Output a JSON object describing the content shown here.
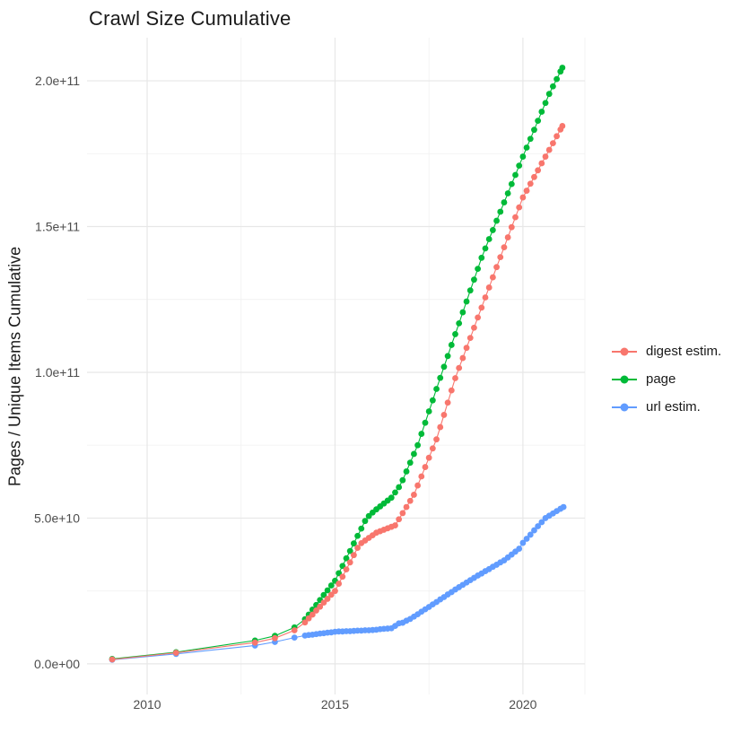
{
  "title": "Crawl Size Cumulative",
  "colors": {
    "background": "#FFFFFF",
    "grid_major": "#E7E7E7",
    "grid_minor": "#F2F2F2",
    "tick_label": "#4D4D4D",
    "text": "#1A1A1A",
    "digest_estim": "#F8766D",
    "page": "#00BA38",
    "url_estim": "#619CFF"
  },
  "legend": {
    "items": [
      {
        "label": "digest estim.",
        "color": "#F8766D"
      },
      {
        "label": "page",
        "color": "#00BA38"
      },
      {
        "label": "url estim.",
        "color": "#619CFF"
      }
    ]
  },
  "chart_data": {
    "type": "scatter",
    "title": "Crawl Size Cumulative",
    "xlabel": "",
    "ylabel": "Pages / Unique Items Cumulative",
    "grid": true,
    "legend_position": "right",
    "xlim": [
      2008.4,
      2021.65
    ],
    "ylim_e9": [
      -10.5,
      214.8
    ],
    "x_ticks": [
      {
        "value": 2010,
        "label": "2010"
      },
      {
        "value": 2015,
        "label": "2015"
      },
      {
        "value": 2020,
        "label": "2020"
      }
    ],
    "x_minor_ticks": [
      2012.5,
      2017.5
    ],
    "y_ticks": [
      {
        "value": 0,
        "label": "0.0e+00"
      },
      {
        "value": 50000000000,
        "label": "5.0e+10"
      },
      {
        "value": 100000000000,
        "label": "1.0e+11"
      },
      {
        "value": 150000000000,
        "label": "1.5e+11"
      },
      {
        "value": 200000000000,
        "label": "2.0e+11"
      }
    ],
    "y_minor_ticks": [
      25000000000,
      75000000000,
      125000000000,
      175000000000
    ],
    "unit_note": "series point values are in billions (1e9) of pages / unique items; x is decimal year",
    "series": [
      {
        "name": "digest estim.",
        "color": "#F8766D",
        "z": 3,
        "points": [
          [
            2009.07,
            1.5
          ],
          [
            2010.77,
            3.8
          ],
          [
            2012.87,
            7.3
          ],
          [
            2013.4,
            8.8
          ],
          [
            2013.92,
            11.5
          ],
          [
            2014.2,
            14.2
          ],
          [
            2014.3,
            15.6
          ],
          [
            2014.4,
            16.9
          ],
          [
            2014.5,
            18.3
          ],
          [
            2014.6,
            19.6
          ],
          [
            2014.7,
            21.0
          ],
          [
            2014.8,
            22.3
          ],
          [
            2014.9,
            23.7
          ],
          [
            2015.0,
            25.0
          ],
          [
            2015.1,
            27.5
          ],
          [
            2015.2,
            29.9
          ],
          [
            2015.3,
            32.4
          ],
          [
            2015.4,
            34.8
          ],
          [
            2015.5,
            37.3
          ],
          [
            2015.6,
            39.8
          ],
          [
            2015.7,
            41.4
          ],
          [
            2015.8,
            42.3
          ],
          [
            2015.9,
            43.2
          ],
          [
            2016.0,
            44.1
          ],
          [
            2016.1,
            45.0
          ],
          [
            2016.2,
            45.5
          ],
          [
            2016.3,
            46.0
          ],
          [
            2016.4,
            46.5
          ],
          [
            2016.5,
            47.0
          ],
          [
            2016.6,
            47.5
          ],
          [
            2016.7,
            49.6
          ],
          [
            2016.8,
            51.7
          ],
          [
            2016.9,
            53.8
          ],
          [
            2017.0,
            55.9
          ],
          [
            2017.1,
            58.0
          ],
          [
            2017.2,
            61.2
          ],
          [
            2017.3,
            64.3
          ],
          [
            2017.4,
            67.5
          ],
          [
            2017.5,
            70.7
          ],
          [
            2017.6,
            73.9
          ],
          [
            2017.7,
            77.0
          ],
          [
            2017.8,
            81.2
          ],
          [
            2017.9,
            85.4
          ],
          [
            2018.0,
            89.6
          ],
          [
            2018.1,
            93.8
          ],
          [
            2018.2,
            98.0
          ],
          [
            2018.3,
            101.5
          ],
          [
            2018.4,
            104.9
          ],
          [
            2018.5,
            108.4
          ],
          [
            2018.6,
            111.8
          ],
          [
            2018.7,
            115.3
          ],
          [
            2018.8,
            118.8
          ],
          [
            2018.9,
            122.2
          ],
          [
            2019.0,
            125.7
          ],
          [
            2019.1,
            129.1
          ],
          [
            2019.2,
            132.6
          ],
          [
            2019.3,
            136.1
          ],
          [
            2019.4,
            139.5
          ],
          [
            2019.5,
            142.9
          ],
          [
            2019.6,
            146.3
          ],
          [
            2019.7,
            149.8
          ],
          [
            2019.8,
            153.2
          ],
          [
            2019.9,
            156.6
          ],
          [
            2020.0,
            160.0
          ],
          [
            2020.1,
            162.3
          ],
          [
            2020.2,
            164.7
          ],
          [
            2020.3,
            167.0
          ],
          [
            2020.4,
            169.3
          ],
          [
            2020.5,
            171.7
          ],
          [
            2020.6,
            174.0
          ],
          [
            2020.7,
            176.3
          ],
          [
            2020.8,
            178.6
          ],
          [
            2020.9,
            181.0
          ],
          [
            2021.0,
            183.3
          ],
          [
            2021.05,
            184.5
          ]
        ]
      },
      {
        "name": "page",
        "color": "#00BA38",
        "z": 2,
        "points": [
          [
            2009.07,
            1.7
          ],
          [
            2010.77,
            4.0
          ],
          [
            2012.87,
            8.0
          ],
          [
            2013.4,
            9.6
          ],
          [
            2013.92,
            12.5
          ],
          [
            2014.2,
            15.3
          ],
          [
            2014.3,
            16.9
          ],
          [
            2014.4,
            18.6
          ],
          [
            2014.5,
            20.2
          ],
          [
            2014.6,
            21.9
          ],
          [
            2014.7,
            23.6
          ],
          [
            2014.8,
            25.2
          ],
          [
            2014.9,
            26.9
          ],
          [
            2015.0,
            28.5
          ],
          [
            2015.1,
            31.1
          ],
          [
            2015.2,
            33.6
          ],
          [
            2015.3,
            36.2
          ],
          [
            2015.4,
            38.7
          ],
          [
            2015.5,
            41.3
          ],
          [
            2015.6,
            43.9
          ],
          [
            2015.7,
            46.4
          ],
          [
            2015.8,
            49.0
          ],
          [
            2015.9,
            50.7
          ],
          [
            2016.0,
            51.9
          ],
          [
            2016.1,
            53.0
          ],
          [
            2016.2,
            54.0
          ],
          [
            2016.3,
            55.0
          ],
          [
            2016.4,
            56.0
          ],
          [
            2016.5,
            57.0
          ],
          [
            2016.6,
            58.8
          ],
          [
            2016.7,
            60.6
          ],
          [
            2016.8,
            63.0
          ],
          [
            2016.9,
            66.0
          ],
          [
            2017.0,
            69.0
          ],
          [
            2017.1,
            72.0
          ],
          [
            2017.2,
            75.0
          ],
          [
            2017.3,
            78.9
          ],
          [
            2017.4,
            82.7
          ],
          [
            2017.5,
            86.6
          ],
          [
            2017.6,
            90.4
          ],
          [
            2017.7,
            94.3
          ],
          [
            2017.8,
            98.1
          ],
          [
            2017.9,
            101.9
          ],
          [
            2018.0,
            105.6
          ],
          [
            2018.1,
            109.4
          ],
          [
            2018.2,
            113.1
          ],
          [
            2018.3,
            116.8
          ],
          [
            2018.4,
            120.6
          ],
          [
            2018.5,
            124.3
          ],
          [
            2018.6,
            128.1
          ],
          [
            2018.7,
            131.8
          ],
          [
            2018.8,
            135.5
          ],
          [
            2018.9,
            139.3
          ],
          [
            2019.0,
            142.5
          ],
          [
            2019.1,
            145.7
          ],
          [
            2019.2,
            148.8
          ],
          [
            2019.3,
            152.0
          ],
          [
            2019.4,
            155.1
          ],
          [
            2019.5,
            158.3
          ],
          [
            2019.6,
            161.4
          ],
          [
            2019.7,
            164.6
          ],
          [
            2019.8,
            167.7
          ],
          [
            2019.9,
            170.9
          ],
          [
            2020.0,
            174.0
          ],
          [
            2020.1,
            177.1
          ],
          [
            2020.2,
            180.1
          ],
          [
            2020.3,
            183.2
          ],
          [
            2020.4,
            186.3
          ],
          [
            2020.5,
            189.4
          ],
          [
            2020.6,
            192.4
          ],
          [
            2020.7,
            195.5
          ],
          [
            2020.8,
            198.1
          ],
          [
            2020.9,
            200.6
          ],
          [
            2021.0,
            203.2
          ],
          [
            2021.05,
            204.5
          ]
        ]
      },
      {
        "name": "url estim.",
        "color": "#619CFF",
        "z": 1,
        "points": [
          [
            2009.07,
            1.4
          ],
          [
            2010.77,
            3.4
          ],
          [
            2012.87,
            6.3
          ],
          [
            2013.4,
            7.5
          ],
          [
            2013.92,
            9.0
          ],
          [
            2014.2,
            9.7
          ],
          [
            2014.3,
            9.9
          ],
          [
            2014.4,
            10.0
          ],
          [
            2014.5,
            10.2
          ],
          [
            2014.6,
            10.4
          ],
          [
            2014.7,
            10.5
          ],
          [
            2014.8,
            10.7
          ],
          [
            2014.9,
            10.8
          ],
          [
            2015.0,
            11.0
          ],
          [
            2015.1,
            11.1
          ],
          [
            2015.2,
            11.1
          ],
          [
            2015.3,
            11.2
          ],
          [
            2015.4,
            11.2
          ],
          [
            2015.5,
            11.3
          ],
          [
            2015.6,
            11.4
          ],
          [
            2015.7,
            11.4
          ],
          [
            2015.8,
            11.5
          ],
          [
            2015.9,
            11.5
          ],
          [
            2016.0,
            11.6
          ],
          [
            2016.1,
            11.7
          ],
          [
            2016.2,
            11.9
          ],
          [
            2016.3,
            12.0
          ],
          [
            2016.4,
            12.1
          ],
          [
            2016.5,
            12.2
          ],
          [
            2016.6,
            13.0
          ],
          [
            2016.7,
            13.9
          ],
          [
            2016.8,
            14.1
          ],
          [
            2016.9,
            14.8
          ],
          [
            2017.0,
            15.4
          ],
          [
            2017.1,
            16.2
          ],
          [
            2017.2,
            17.0
          ],
          [
            2017.3,
            17.9
          ],
          [
            2017.4,
            18.7
          ],
          [
            2017.5,
            19.5
          ],
          [
            2017.6,
            20.4
          ],
          [
            2017.7,
            21.2
          ],
          [
            2017.8,
            22.1
          ],
          [
            2017.9,
            22.9
          ],
          [
            2018.0,
            23.8
          ],
          [
            2018.1,
            24.6
          ],
          [
            2018.2,
            25.5
          ],
          [
            2018.3,
            26.3
          ],
          [
            2018.4,
            27.1
          ],
          [
            2018.5,
            27.9
          ],
          [
            2018.6,
            28.7
          ],
          [
            2018.7,
            29.5
          ],
          [
            2018.8,
            30.3
          ],
          [
            2018.9,
            31.0
          ],
          [
            2019.0,
            31.8
          ],
          [
            2019.1,
            32.5
          ],
          [
            2019.2,
            33.3
          ],
          [
            2019.3,
            34.0
          ],
          [
            2019.4,
            34.8
          ],
          [
            2019.5,
            35.5
          ],
          [
            2019.6,
            36.5
          ],
          [
            2019.7,
            37.5
          ],
          [
            2019.8,
            38.5
          ],
          [
            2019.9,
            39.5
          ],
          [
            2020.0,
            41.5
          ],
          [
            2020.1,
            42.9
          ],
          [
            2020.2,
            44.3
          ],
          [
            2020.3,
            45.8
          ],
          [
            2020.4,
            47.2
          ],
          [
            2020.5,
            48.6
          ],
          [
            2020.6,
            50.0
          ],
          [
            2020.7,
            50.8
          ],
          [
            2020.8,
            51.6
          ],
          [
            2020.9,
            52.4
          ],
          [
            2021.0,
            53.2
          ],
          [
            2021.08,
            53.8
          ]
        ]
      }
    ]
  }
}
